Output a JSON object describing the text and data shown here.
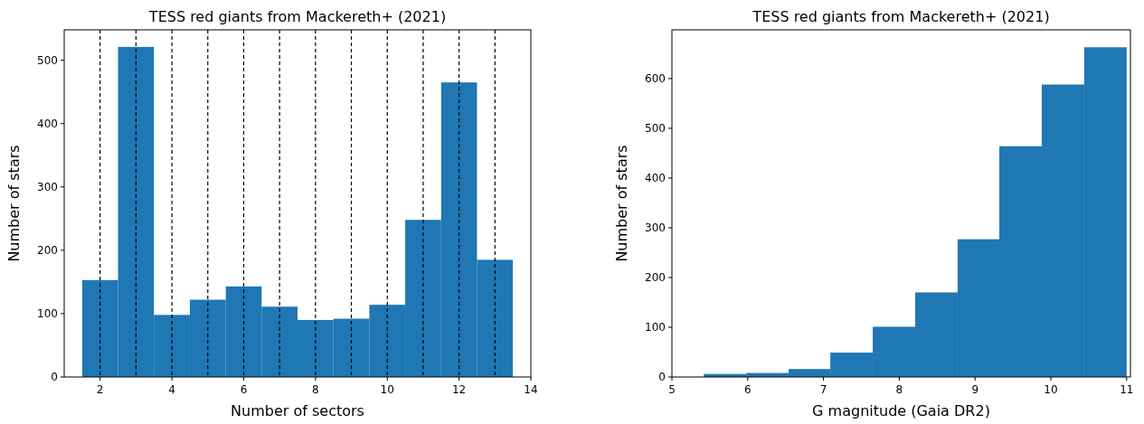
{
  "chart_data": [
    {
      "type": "histogram",
      "title": "TESS red giants from Mackereth+ (2021)",
      "xlabel": "Number of sectors",
      "ylabel": "Number of stars",
      "bins": [
        1.5,
        2.5,
        3.5,
        4.5,
        5.5,
        6.5,
        7.5,
        8.5,
        9.5,
        10.5,
        11.5,
        12.5,
        13.5
      ],
      "values": [
        153,
        521,
        98,
        122,
        143,
        111,
        90,
        92,
        114,
        248,
        465,
        185
      ],
      "color": "#1f77b4",
      "xlim": [
        1,
        14
      ],
      "ylim": [
        0,
        548
      ],
      "xticks": [
        2,
        4,
        6,
        8,
        10,
        12,
        14
      ],
      "yticks": [
        0,
        100,
        200,
        300,
        400,
        500
      ],
      "ref_lines": [
        {
          "axis": "x",
          "value": 2,
          "color": "#000000",
          "line_style": "dashed"
        },
        {
          "axis": "x",
          "value": 3,
          "color": "#000000",
          "line_style": "dashed"
        },
        {
          "axis": "x",
          "value": 4,
          "color": "#000000",
          "line_style": "dashed"
        },
        {
          "axis": "x",
          "value": 5,
          "color": "#000000",
          "line_style": "dashed"
        },
        {
          "axis": "x",
          "value": 6,
          "color": "#000000",
          "line_style": "dashed"
        },
        {
          "axis": "x",
          "value": 7,
          "color": "#000000",
          "line_style": "dashed"
        },
        {
          "axis": "x",
          "value": 8,
          "color": "#000000",
          "line_style": "dashed"
        },
        {
          "axis": "x",
          "value": 9,
          "color": "#000000",
          "line_style": "dashed"
        },
        {
          "axis": "x",
          "value": 10,
          "color": "#000000",
          "line_style": "dashed"
        },
        {
          "axis": "x",
          "value": 11,
          "color": "#000000",
          "line_style": "dashed"
        },
        {
          "axis": "x",
          "value": 12,
          "color": "#000000",
          "line_style": "dashed"
        },
        {
          "axis": "x",
          "value": 13,
          "color": "#000000",
          "line_style": "dashed"
        }
      ]
    },
    {
      "type": "histogram",
      "title": "TESS red giants from Mackereth+ (2021)",
      "xlabel": "G magnitude (Gaia DR2)",
      "ylabel": "Number of stars",
      "bins": [
        5.42,
        5.98,
        6.54,
        7.09,
        7.65,
        8.21,
        8.77,
        9.32,
        9.88,
        10.44,
        11.0
      ],
      "values": [
        6,
        8,
        16,
        49,
        101,
        170,
        277,
        464,
        588,
        663
      ],
      "color": "#1f77b4",
      "xlim": [
        5,
        11.05
      ],
      "ylim": [
        0,
        698
      ],
      "xticks": [
        5,
        6,
        7,
        8,
        9,
        10,
        11
      ],
      "yticks": [
        0,
        100,
        200,
        300,
        400,
        500,
        600
      ]
    }
  ]
}
